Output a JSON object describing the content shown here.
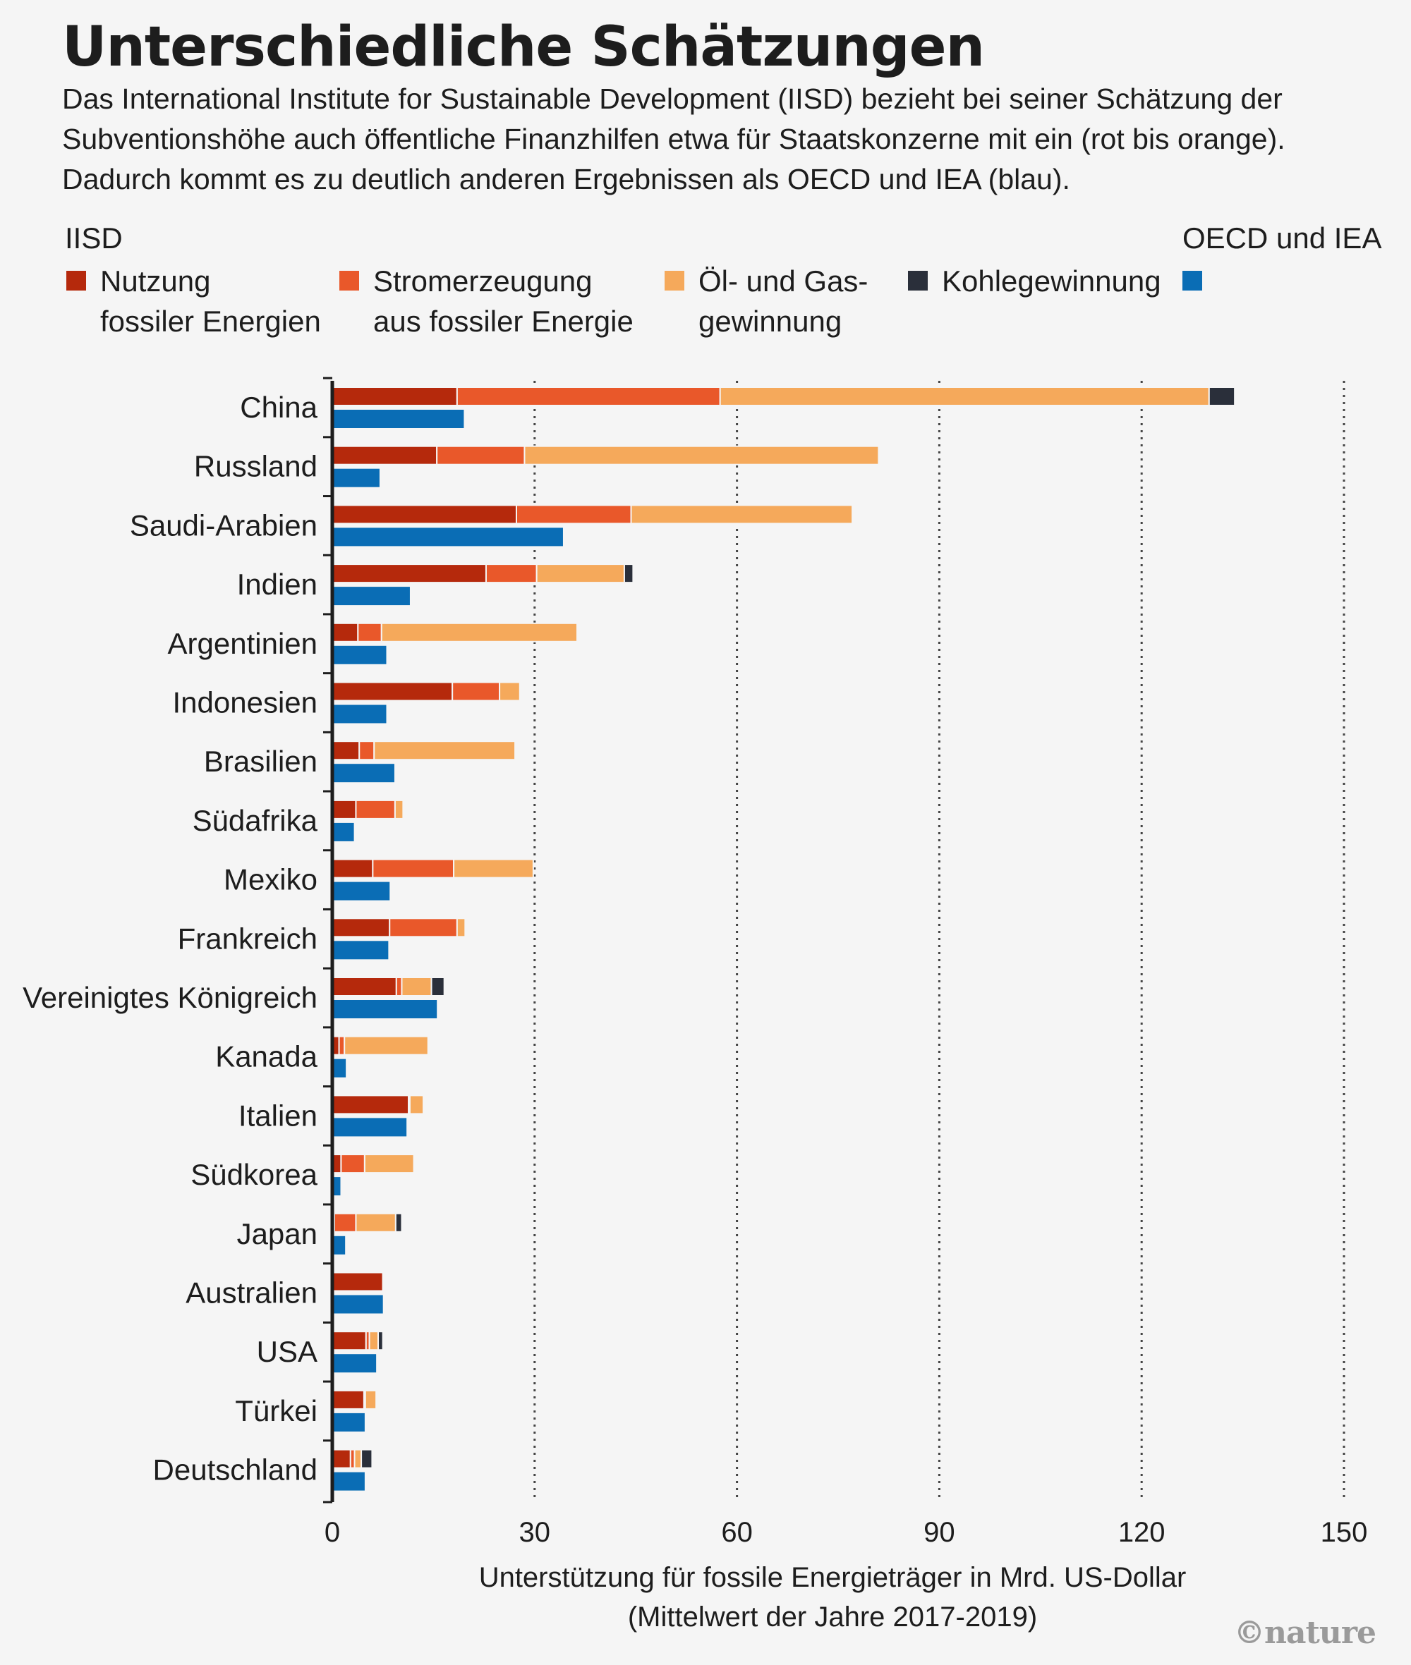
{
  "title": "Unterschiedliche Schätzungen",
  "subtitle": [
    "Das International Institute for Sustainable Development (IISD) bezieht bei seiner Schätzung der",
    "Subventionshöhe auch öffentliche Finanzhilfen etwa für Staatskonzerne mit ein (rot bis orange).",
    "Dadurch kommt es zu deutlich anderen Ergebnissen als OECD und IEA (blau)."
  ],
  "legend": {
    "iisd_heading": "IISD",
    "oecd_heading": "OECD und IEA",
    "items": [
      {
        "lines": [
          "Nutzung",
          "fossiler Energien"
        ],
        "color": "#b5290c"
      },
      {
        "lines": [
          "Stromerzeugung",
          "aus fossiler Energie"
        ],
        "color": "#e9582a"
      },
      {
        "lines": [
          "Öl- und Gas-",
          "gewinnung"
        ],
        "color": "#f5a95b"
      },
      {
        "lines": [
          "Kohlegewinnung"
        ],
        "color": "#2a2f3a"
      },
      {
        "lines": [
          ""
        ],
        "color": "#0a6db5"
      }
    ]
  },
  "credit": "©nature",
  "chart_data": {
    "type": "bar",
    "orientation": "horizontal",
    "xlabel": "Unterstützung für fossile Energieträger in Mrd. US-Dollar",
    "xlabel_note": "(Mittelwert der Jahre 2017-2019)",
    "xlim": [
      0,
      150
    ],
    "xticks": [
      0,
      30,
      60,
      90,
      120,
      150
    ],
    "grid": "vertical dotted",
    "categories": [
      "China",
      "Russland",
      "Saudi-Arabien",
      "Indien",
      "Argentinien",
      "Indonesien",
      "Brasilien",
      "Südafrika",
      "Mexiko",
      "Frankreich",
      "Vereinigtes Königreich",
      "Kanada",
      "Italien",
      "Südkorea",
      "Japan",
      "Australien",
      "USA",
      "Türkei",
      "Deutschland"
    ],
    "stacked_series": [
      {
        "name": "Nutzung fossiler Energien",
        "color": "#b5290c",
        "values": [
          18.5,
          15.5,
          27.3,
          22.8,
          3.8,
          17.8,
          4.0,
          3.5,
          6.0,
          8.5,
          9.5,
          1.0,
          11.3,
          1.3,
          0.3,
          7.5,
          5.0,
          4.7,
          2.7
        ]
      },
      {
        "name": "Stromerzeugung aus fossiler Energie",
        "color": "#e9582a",
        "values": [
          39.0,
          13.0,
          17.0,
          7.5,
          3.5,
          7.0,
          2.2,
          5.8,
          12.0,
          10.0,
          0.8,
          0.8,
          0.2,
          3.5,
          3.2,
          0.2,
          0.5,
          0.2,
          0.6
        ]
      },
      {
        "name": "Öl- und Gasgewinnung",
        "color": "#f5a95b",
        "values": [
          72.5,
          52.5,
          32.8,
          13.0,
          29.0,
          3.0,
          20.9,
          1.2,
          11.8,
          1.2,
          4.4,
          12.4,
          2.0,
          7.3,
          5.9,
          0.0,
          1.3,
          1.6,
          1.0
        ]
      },
      {
        "name": "Kohlegewinnung",
        "color": "#2a2f3a",
        "values": [
          3.8,
          0.0,
          0.0,
          1.3,
          0.0,
          0.0,
          0.0,
          0.0,
          0.0,
          0.0,
          1.9,
          0.0,
          0.0,
          0.2,
          0.9,
          0.0,
          0.7,
          0.0,
          1.6
        ]
      }
    ],
    "series": [
      {
        "name": "OECD und IEA",
        "color": "#0a6db5",
        "values": [
          19.5,
          7.0,
          34.2,
          11.5,
          8.0,
          8.0,
          9.2,
          3.2,
          8.5,
          8.3,
          15.5,
          2.0,
          11.0,
          1.2,
          1.9,
          7.5,
          6.5,
          4.8,
          4.8
        ]
      }
    ]
  }
}
